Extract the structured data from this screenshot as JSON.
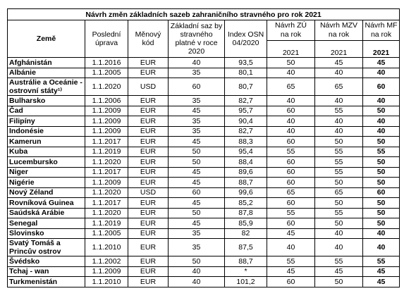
{
  "table": {
    "title": "Návrh změn základních sazeb zahraničního stravného pro rok 2021",
    "header": [
      "Země",
      "Poslední úprava",
      "Měnový kód",
      "Základní saz by stravného platné v roce 2020",
      "Index OSN 04/2020"
    ],
    "proposals": [
      {
        "label": "Návrh ZÚ",
        "unit": "na rok",
        "year": "2021"
      },
      {
        "label": "Návrh MZV",
        "unit": "na rok",
        "year": "2021"
      },
      {
        "label": "Návrh MF",
        "unit": "na rok",
        "year": "2021"
      }
    ],
    "rows": [
      [
        "Afghánistán",
        "1.1.2016",
        "EUR",
        "40",
        "93,5",
        "50",
        "45",
        "45"
      ],
      [
        "Albánie",
        "1.1.2005",
        "EUR",
        "35",
        "80,1",
        "40",
        "40",
        "40"
      ],
      [
        "Austrálie a Oceánie - ostrovní státy¹⁾",
        "1.1.2020",
        "USD",
        "60",
        "80,7",
        "65",
        "65",
        "60"
      ],
      [
        "Bulharsko",
        "1.1.2006",
        "EUR",
        "35",
        "82,7",
        "40",
        "40",
        "40"
      ],
      [
        "Čad",
        "1.1.2009",
        "EUR",
        "45",
        "95,7",
        "60",
        "55",
        "50"
      ],
      [
        "Filipíny",
        "1.1.2009",
        "EUR",
        "35",
        "90,4",
        "40",
        "40",
        "40"
      ],
      [
        "Indonésie",
        "1.1.2009",
        "EUR",
        "35",
        "82,7",
        "40",
        "40",
        "40"
      ],
      [
        "Kamerun",
        "1.1.2017",
        "EUR",
        "45",
        "88,3",
        "60",
        "50",
        "50"
      ],
      [
        "Kuba",
        "1.1.2019",
        "EUR",
        "50",
        "95,4",
        "55",
        "55",
        "55"
      ],
      [
        "Lucembursko",
        "1.1.2020",
        "EUR",
        "50",
        "88,4",
        "60",
        "55",
        "50"
      ],
      [
        "Niger",
        "1.1.2017",
        "EUR",
        "45",
        "89,6",
        "60",
        "55",
        "50"
      ],
      [
        "Nigérie",
        "1.1.2009",
        "EUR",
        "45",
        "88,7",
        "60",
        "50",
        "50"
      ],
      [
        "Nový Zéland",
        "1.1.2020",
        "USD",
        "60",
        "99,6",
        "65",
        "65",
        "60"
      ],
      [
        "Rovníková Guinea",
        "1.1.2017",
        "EUR",
        "45",
        "85,2",
        "60",
        "50",
        "50"
      ],
      [
        "Saúdská Arábie",
        "1.1.2020",
        "EUR",
        "50",
        "87,8",
        "55",
        "55",
        "50"
      ],
      [
        "Senegal",
        "1.1.2019",
        "EUR",
        "45",
        "85,9",
        "60",
        "50",
        "50"
      ],
      [
        "Slovinsko",
        "1.1.2005",
        "EUR",
        "35",
        "82",
        "45",
        "40",
        "40"
      ],
      [
        "Svatý Tomáš a Princův ostrov",
        "1.1.2010",
        "EUR",
        "35",
        "87,5",
        "40",
        "40",
        "40"
      ],
      [
        "Švédsko",
        "1.1.2002",
        "EUR",
        "50",
        "88,7",
        "55",
        "55",
        "55"
      ],
      [
        "Tchaj - wan",
        "1.1.2009",
        "EUR",
        "40",
        "*",
        "45",
        "45",
        "45"
      ],
      [
        "Turkmenistán",
        "1.1.2010",
        "EUR",
        "40",
        "101,2",
        "60",
        "50",
        "45"
      ]
    ]
  }
}
